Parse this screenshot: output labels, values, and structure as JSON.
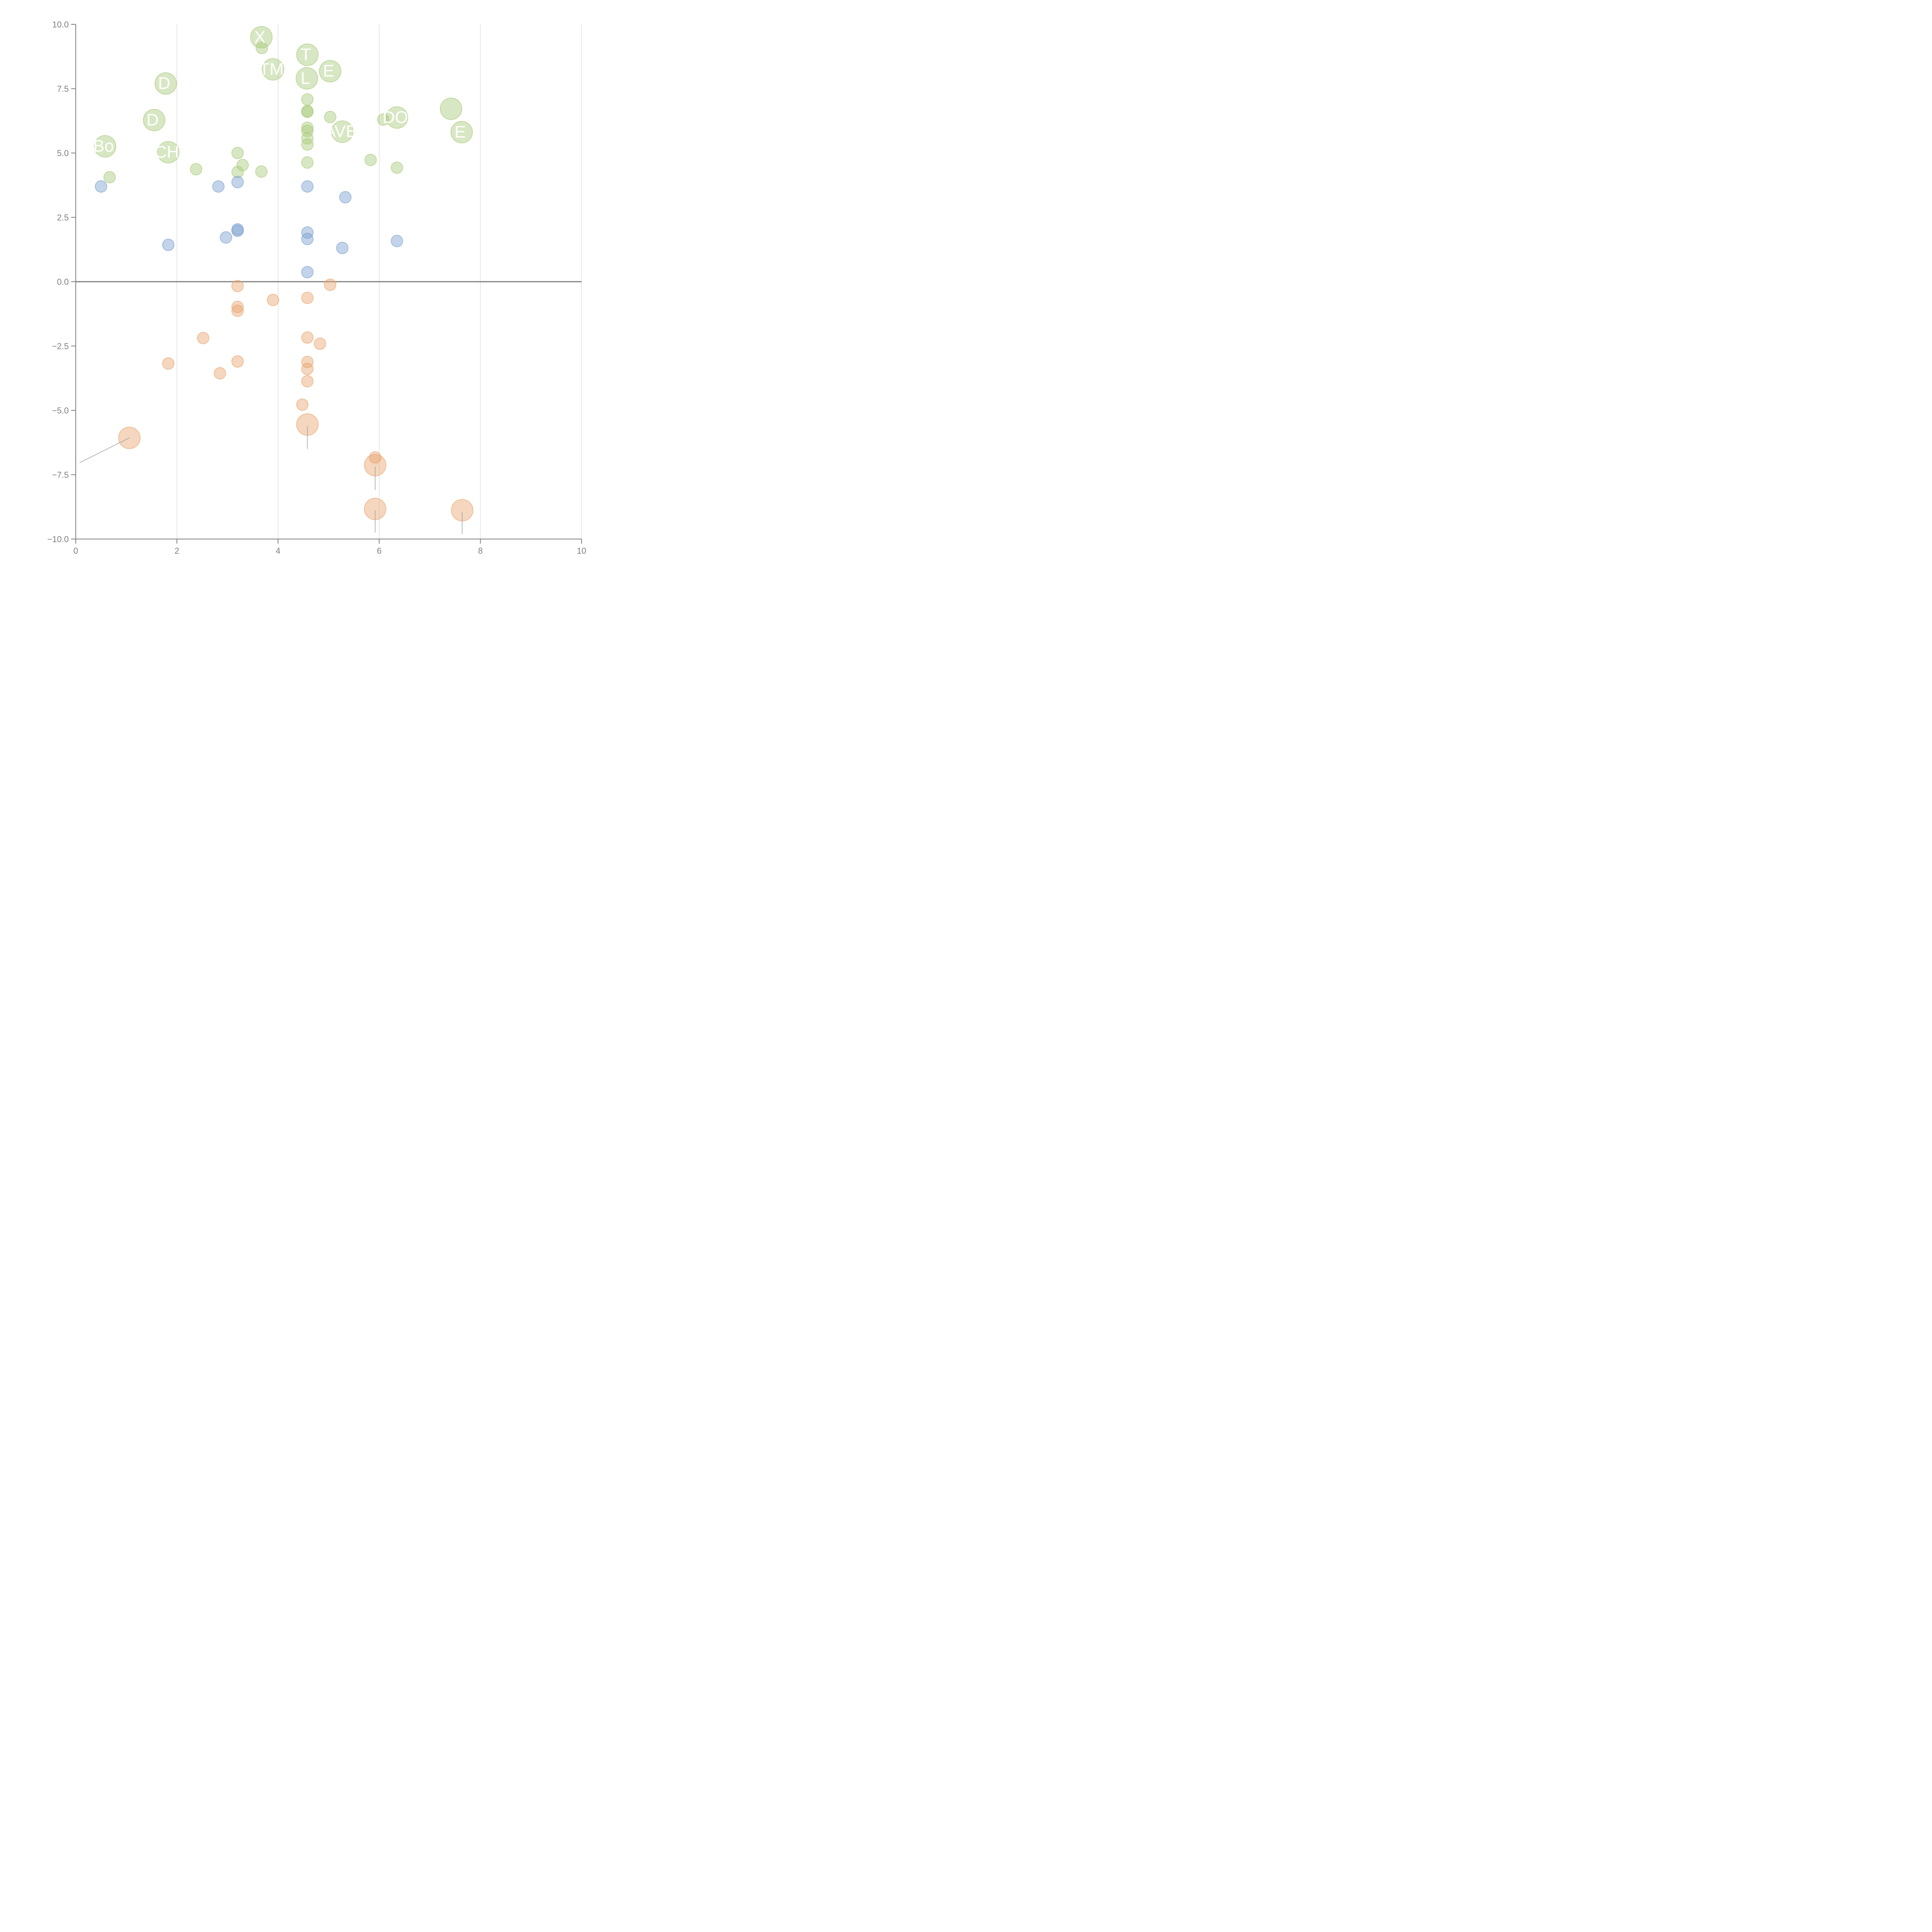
{
  "chart_data": {
    "type": "scatter",
    "subtype": "bubble",
    "title": "",
    "xlabel": "",
    "ylabel": "",
    "xlim": [
      0,
      10
    ],
    "ylim": [
      -10,
      10
    ],
    "x_ticks": [
      "0",
      "2",
      "4",
      "6",
      "8",
      "10"
    ],
    "y_ticks": [
      "10.0",
      "7.5",
      "5.0",
      "2.5",
      "0.0",
      "−2.5",
      "−5.0",
      "−7.5",
      "−10.0"
    ],
    "x_tick_values": [
      0,
      2,
      4,
      6,
      8,
      10
    ],
    "y_tick_values": [
      10,
      7.5,
      5,
      2.5,
      0,
      -2.5,
      -5,
      -7.5,
      -10
    ],
    "grid": "vertical",
    "zero_line": true,
    "legend": "none",
    "colors": {
      "green": "#a9c97a",
      "blue": "#7a9fd1",
      "orange": "#e8a56e",
      "axis": "#808080",
      "grid": "#d0d0d0",
      "leader": "#a0a0a0"
    },
    "series": [
      {
        "name": "positive-high",
        "color": "green",
        "points": [
          {
            "x": 3.67,
            "y": 9.5,
            "size": "large",
            "label": "X"
          },
          {
            "x": 3.68,
            "y": 9.08,
            "size": "small"
          },
          {
            "x": 4.58,
            "y": 8.82,
            "size": "large",
            "label": "T"
          },
          {
            "x": 3.9,
            "y": 8.25,
            "size": "large",
            "label": "TM"
          },
          {
            "x": 5.03,
            "y": 8.18,
            "size": "large",
            "label": "E"
          },
          {
            "x": 4.57,
            "y": 7.9,
            "size": "large",
            "label": "L"
          },
          {
            "x": 1.78,
            "y": 7.7,
            "size": "large",
            "label": "D"
          },
          {
            "x": 4.58,
            "y": 7.08,
            "size": "small"
          },
          {
            "x": 7.42,
            "y": 6.72,
            "size": "large",
            "label": ""
          },
          {
            "x": 4.58,
            "y": 6.63,
            "size": "small"
          },
          {
            "x": 4.58,
            "y": 6.6,
            "size": "small"
          },
          {
            "x": 5.03,
            "y": 6.4,
            "size": "small"
          },
          {
            "x": 6.35,
            "y": 6.38,
            "size": "large",
            "label": "DO"
          },
          {
            "x": 6.08,
            "y": 6.3,
            "size": "small"
          },
          {
            "x": 1.55,
            "y": 6.28,
            "size": "large",
            "label": "D"
          },
          {
            "x": 4.58,
            "y": 5.98,
            "size": "small"
          },
          {
            "x": 4.58,
            "y": 5.86,
            "size": "small"
          },
          {
            "x": 5.27,
            "y": 5.83,
            "size": "large",
            "label": "AVE"
          },
          {
            "x": 7.63,
            "y": 5.81,
            "size": "large",
            "label": "E"
          },
          {
            "x": 4.58,
            "y": 5.57,
            "size": "small"
          },
          {
            "x": 4.58,
            "y": 5.33,
            "size": "small"
          },
          {
            "x": 0.58,
            "y": 5.26,
            "size": "large",
            "label": "Bo"
          },
          {
            "x": 1.83,
            "y": 5.03,
            "size": "large",
            "label": "CH"
          },
          {
            "x": 3.2,
            "y": 5.0,
            "size": "small"
          },
          {
            "x": 5.83,
            "y": 4.73,
            "size": "small"
          },
          {
            "x": 4.58,
            "y": 4.63,
            "size": "small"
          },
          {
            "x": 3.3,
            "y": 4.53,
            "size": "small"
          },
          {
            "x": 6.35,
            "y": 4.43,
            "size": "small"
          },
          {
            "x": 2.38,
            "y": 4.37,
            "size": "small"
          },
          {
            "x": 3.67,
            "y": 4.28,
            "size": "small"
          },
          {
            "x": 3.2,
            "y": 4.26,
            "size": "small"
          },
          {
            "x": 0.67,
            "y": 4.06,
            "size": "small"
          }
        ]
      },
      {
        "name": "positive-low",
        "color": "blue",
        "points": [
          {
            "x": 3.2,
            "y": 3.87,
            "size": "small"
          },
          {
            "x": 0.5,
            "y": 3.7,
            "size": "small"
          },
          {
            "x": 2.82,
            "y": 3.7,
            "size": "small"
          },
          {
            "x": 4.58,
            "y": 3.7,
            "size": "small"
          },
          {
            "x": 5.33,
            "y": 3.28,
            "size": "small"
          },
          {
            "x": 3.2,
            "y": 2.03,
            "size": "small"
          },
          {
            "x": 3.2,
            "y": 1.98,
            "size": "small"
          },
          {
            "x": 4.58,
            "y": 1.91,
            "size": "small"
          },
          {
            "x": 2.97,
            "y": 1.72,
            "size": "small"
          },
          {
            "x": 4.58,
            "y": 1.66,
            "size": "small"
          },
          {
            "x": 6.35,
            "y": 1.58,
            "size": "small"
          },
          {
            "x": 1.83,
            "y": 1.43,
            "size": "small"
          },
          {
            "x": 5.27,
            "y": 1.31,
            "size": "small"
          },
          {
            "x": 4.58,
            "y": 0.37,
            "size": "small"
          }
        ]
      },
      {
        "name": "negative",
        "color": "orange",
        "points": [
          {
            "x": 5.03,
            "y": -0.12,
            "size": "small"
          },
          {
            "x": 3.2,
            "y": -0.17,
            "size": "small"
          },
          {
            "x": 4.58,
            "y": -0.63,
            "size": "small"
          },
          {
            "x": 3.9,
            "y": -0.71,
            "size": "small"
          },
          {
            "x": 3.2,
            "y": -0.98,
            "size": "small"
          },
          {
            "x": 3.2,
            "y": -1.13,
            "size": "small"
          },
          {
            "x": 4.58,
            "y": -2.17,
            "size": "small"
          },
          {
            "x": 2.52,
            "y": -2.19,
            "size": "small"
          },
          {
            "x": 4.83,
            "y": -2.41,
            "size": "small"
          },
          {
            "x": 3.2,
            "y": -3.1,
            "size": "small"
          },
          {
            "x": 4.58,
            "y": -3.12,
            "size": "small"
          },
          {
            "x": 1.83,
            "y": -3.18,
            "size": "small"
          },
          {
            "x": 4.58,
            "y": -3.39,
            "size": "small"
          },
          {
            "x": 2.85,
            "y": -3.56,
            "size": "small"
          },
          {
            "x": 4.58,
            "y": -3.87,
            "size": "small"
          },
          {
            "x": 4.48,
            "y": -4.78,
            "size": "small"
          },
          {
            "x": 4.58,
            "y": -5.55,
            "size": "large",
            "leader": [
              4.58,
              -6.5
            ]
          },
          {
            "x": 1.06,
            "y": -6.07,
            "size": "large",
            "leader": [
              0.08,
              -7.03
            ]
          },
          {
            "x": 5.92,
            "y": -6.83,
            "size": "small"
          },
          {
            "x": 5.92,
            "y": -7.13,
            "size": "large",
            "leader": [
              5.92,
              -8.1
            ]
          },
          {
            "x": 5.92,
            "y": -8.83,
            "size": "large",
            "leader": [
              5.92,
              -9.75
            ]
          },
          {
            "x": 7.64,
            "y": -8.88,
            "size": "large",
            "leader": [
              7.64,
              -9.8
            ]
          }
        ]
      }
    ]
  }
}
